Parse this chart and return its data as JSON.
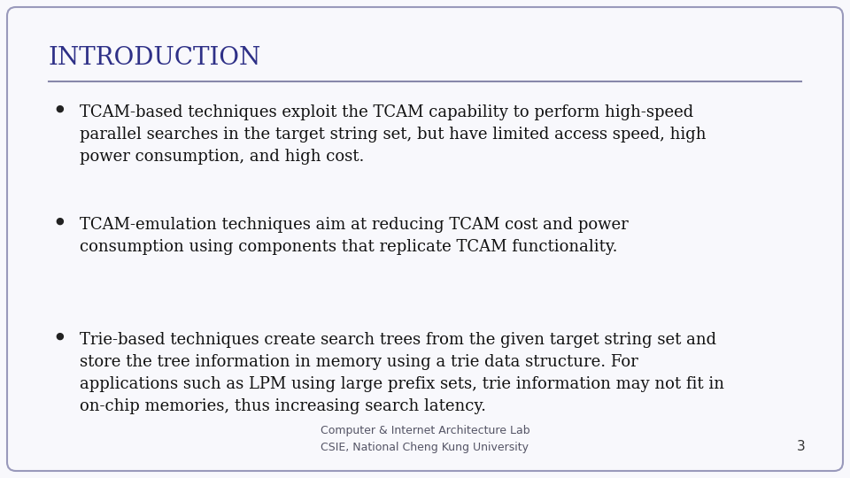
{
  "title": "INTRODUCTION",
  "title_color": "#2e3087",
  "title_fontsize": 20,
  "separator_color": "#8888aa",
  "background_color": "#f8f8fc",
  "border_color": "#9999bb",
  "bullet_color": "#222222",
  "text_color": "#111111",
  "bullet_char": "l",
  "bullets": [
    "TCAM-based techniques exploit the TCAM capability to perform high-speed\nparallel searches in the target string set, but have limited access speed, high\npower consumption, and high cost.",
    "TCAM-emulation techniques aim at reducing TCAM cost and power\nconsumption using components that replicate TCAM functionality.",
    "Trie-based techniques create search trees from the given target string set and\nstore the tree information in memory using a trie data structure. For\napplications such as LPM using large prefix sets, trie information may not fit in\non-chip memories, thus increasing search latency."
  ],
  "bullet_fontsize": 13,
  "footer_line1": "Computer & Internet Architecture Lab",
  "footer_line2": "CSIE, National Cheng Kung University",
  "footer_fontsize": 9,
  "page_number": "3",
  "page_number_fontsize": 11
}
